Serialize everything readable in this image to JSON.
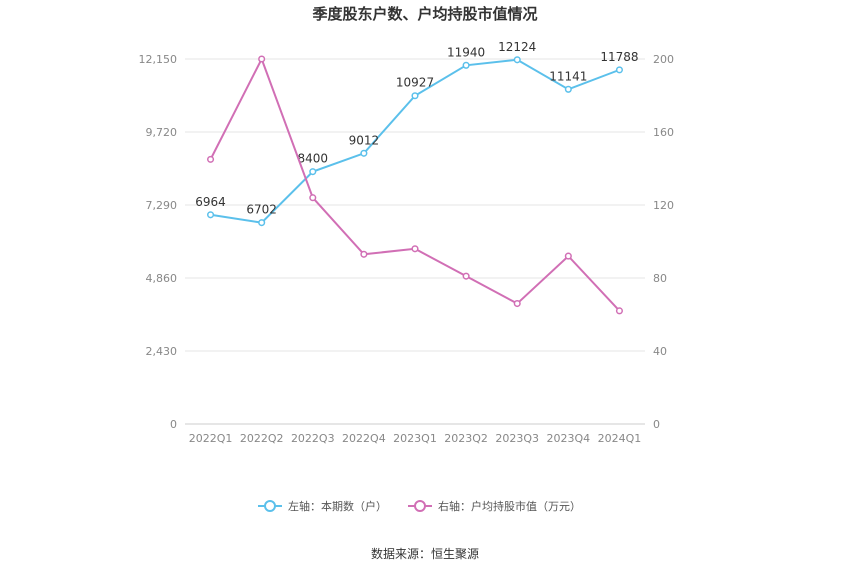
{
  "chart_data": {
    "type": "line",
    "title": "季度股东户数、户均持股市值情况",
    "categories": [
      "2022Q1",
      "2022Q2",
      "2022Q3",
      "2022Q4",
      "2023Q1",
      "2023Q2",
      "2023Q3",
      "2023Q4",
      "2024Q1"
    ],
    "left_axis": {
      "ticks": [
        0,
        2430,
        4860,
        7290,
        9720,
        12150
      ],
      "tick_labels": [
        "0",
        "2,430",
        "4,860",
        "7,290",
        "9,720",
        "12,150"
      ],
      "range": [
        0,
        12150
      ]
    },
    "right_axis": {
      "ticks": [
        0,
        40,
        80,
        120,
        160,
        200
      ],
      "tick_labels": [
        "0",
        "40",
        "80",
        "120",
        "160",
        "200"
      ],
      "range": [
        0,
        200
      ]
    },
    "series": [
      {
        "name": "左轴：本期数（户）",
        "axis": "left",
        "color": "#5bc0eb",
        "values": [
          6964,
          6702,
          8400,
          9012,
          10927,
          11940,
          12124,
          11141,
          11788
        ],
        "labels": [
          "6964",
          "6702",
          "8400",
          "9012",
          "10927",
          "11940",
          "12124",
          "11141",
          "11788"
        ]
      },
      {
        "name": "右轴：户均持股市值（万元）",
        "axis": "right",
        "color": "#d16fb5",
        "values": [
          145,
          200,
          124,
          93,
          96,
          81,
          66,
          92,
          62
        ]
      }
    ],
    "grid": true,
    "legend": "bottom-center",
    "source": "数据来源：恒生聚源"
  }
}
